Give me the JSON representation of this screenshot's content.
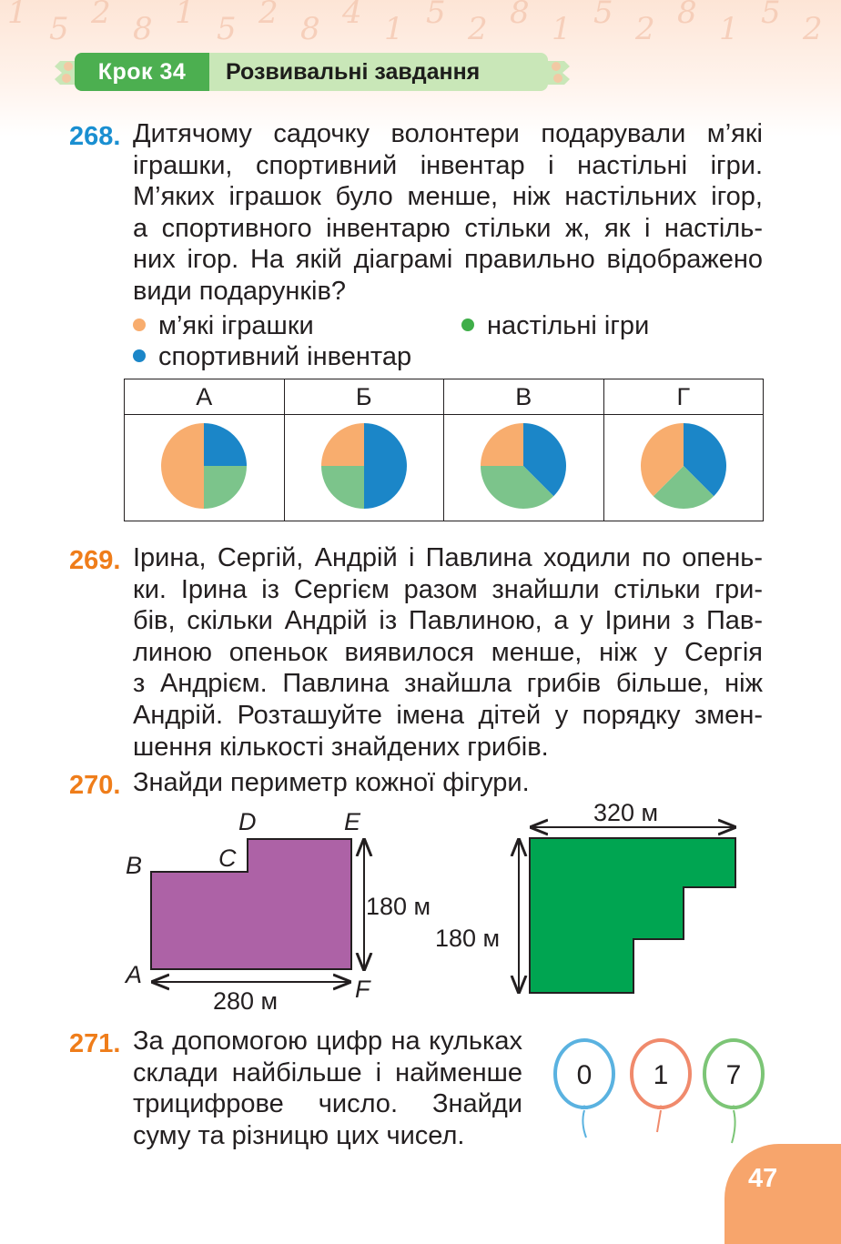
{
  "header": {
    "step_label": "Крок 34",
    "title": "Розвивальні завдання",
    "background_digits": [
      "1",
      "5",
      "2",
      "8",
      "1",
      "5",
      "2",
      "8",
      "4",
      "1",
      "5",
      "2",
      "8",
      "1",
      "5",
      "2",
      "8",
      "1",
      "5",
      "2"
    ]
  },
  "task268": {
    "number": "268.",
    "lines": [
      "Дитячому садочку волонтери подарували м’які",
      "іграшки, спортивний інвентар і настільні ігри.",
      "М’яких іграшок було менше, ніж настільних ігор,",
      "а спортивного інвентарю стільки ж, як і настіль-",
      "них ігор. На якій діаграмі правильно відображено",
      "види подарунків?"
    ],
    "legend": [
      {
        "label": "м’які іграшки",
        "color": "#f8ad6e"
      },
      {
        "label": "настільні ігри",
        "color": "#3fae49"
      },
      {
        "label": "спортивний інвентар",
        "color": "#1b86c8"
      }
    ],
    "options": [
      {
        "label": "А",
        "slices": [
          {
            "fraction": 0.5,
            "color": "#f8ad6e"
          },
          {
            "fraction": 0.25,
            "color": "#7cc48b"
          },
          {
            "fraction": 0.25,
            "color": "#1b86c8"
          }
        ]
      },
      {
        "label": "Б",
        "slices": [
          {
            "fraction": 0.25,
            "color": "#f8ad6e"
          },
          {
            "fraction": 0.25,
            "color": "#7cc48b"
          },
          {
            "fraction": 0.5,
            "color": "#1b86c8"
          }
        ]
      },
      {
        "label": "В",
        "slices": [
          {
            "fraction": 0.25,
            "color": "#f8ad6e"
          },
          {
            "fraction": 0.375,
            "color": "#7cc48b"
          },
          {
            "fraction": 0.375,
            "color": "#1b86c8"
          }
        ]
      },
      {
        "label": "Г",
        "slices": [
          {
            "fraction": 0.375,
            "color": "#f8ad6e"
          },
          {
            "fraction": 0.25,
            "color": "#7cc48b"
          },
          {
            "fraction": 0.375,
            "color": "#1b86c8"
          }
        ]
      }
    ]
  },
  "task269": {
    "number": "269.",
    "lines": [
      "Ірина, Сергій, Андрій і Павлина ходили по опень-",
      "ки. Ірина із Сергієм разом знайшли стільки гри-",
      "бів, скільки Андрій із Павлиною, а у Ірини з Пав-",
      "линою опеньок виявилося менше, ніж у Сергія",
      "з Андрієм. Павлина знайшла грибів більше, ніж",
      "Андрій. Розташуйте імена дітей у порядку змен-",
      "шення кількості знайдених грибів."
    ]
  },
  "task270": {
    "number": "270.",
    "text": "Знайди периметр кожної фігури.",
    "figure1": {
      "color": "#ad62a6",
      "vertex_labels": [
        "A",
        "B",
        "C",
        "D",
        "E",
        "F"
      ],
      "width_label": "280 м",
      "height_label": "180 м"
    },
    "figure2": {
      "color": "#00a551",
      "width_label": "320 м",
      "height_label": "180 м"
    }
  },
  "task271": {
    "number": "271.",
    "lines": [
      "За допомогою цифр на кульках",
      "склади найбільше і найменше",
      "трицифрове число. Знайди",
      "суму та різницю цих чисел."
    ],
    "balloons": [
      {
        "digit": "0",
        "color": "#5ab2e0"
      },
      {
        "digit": "1",
        "color": "#f08a6c"
      },
      {
        "digit": "7",
        "color": "#7cc576"
      }
    ]
  },
  "page_number": "47"
}
